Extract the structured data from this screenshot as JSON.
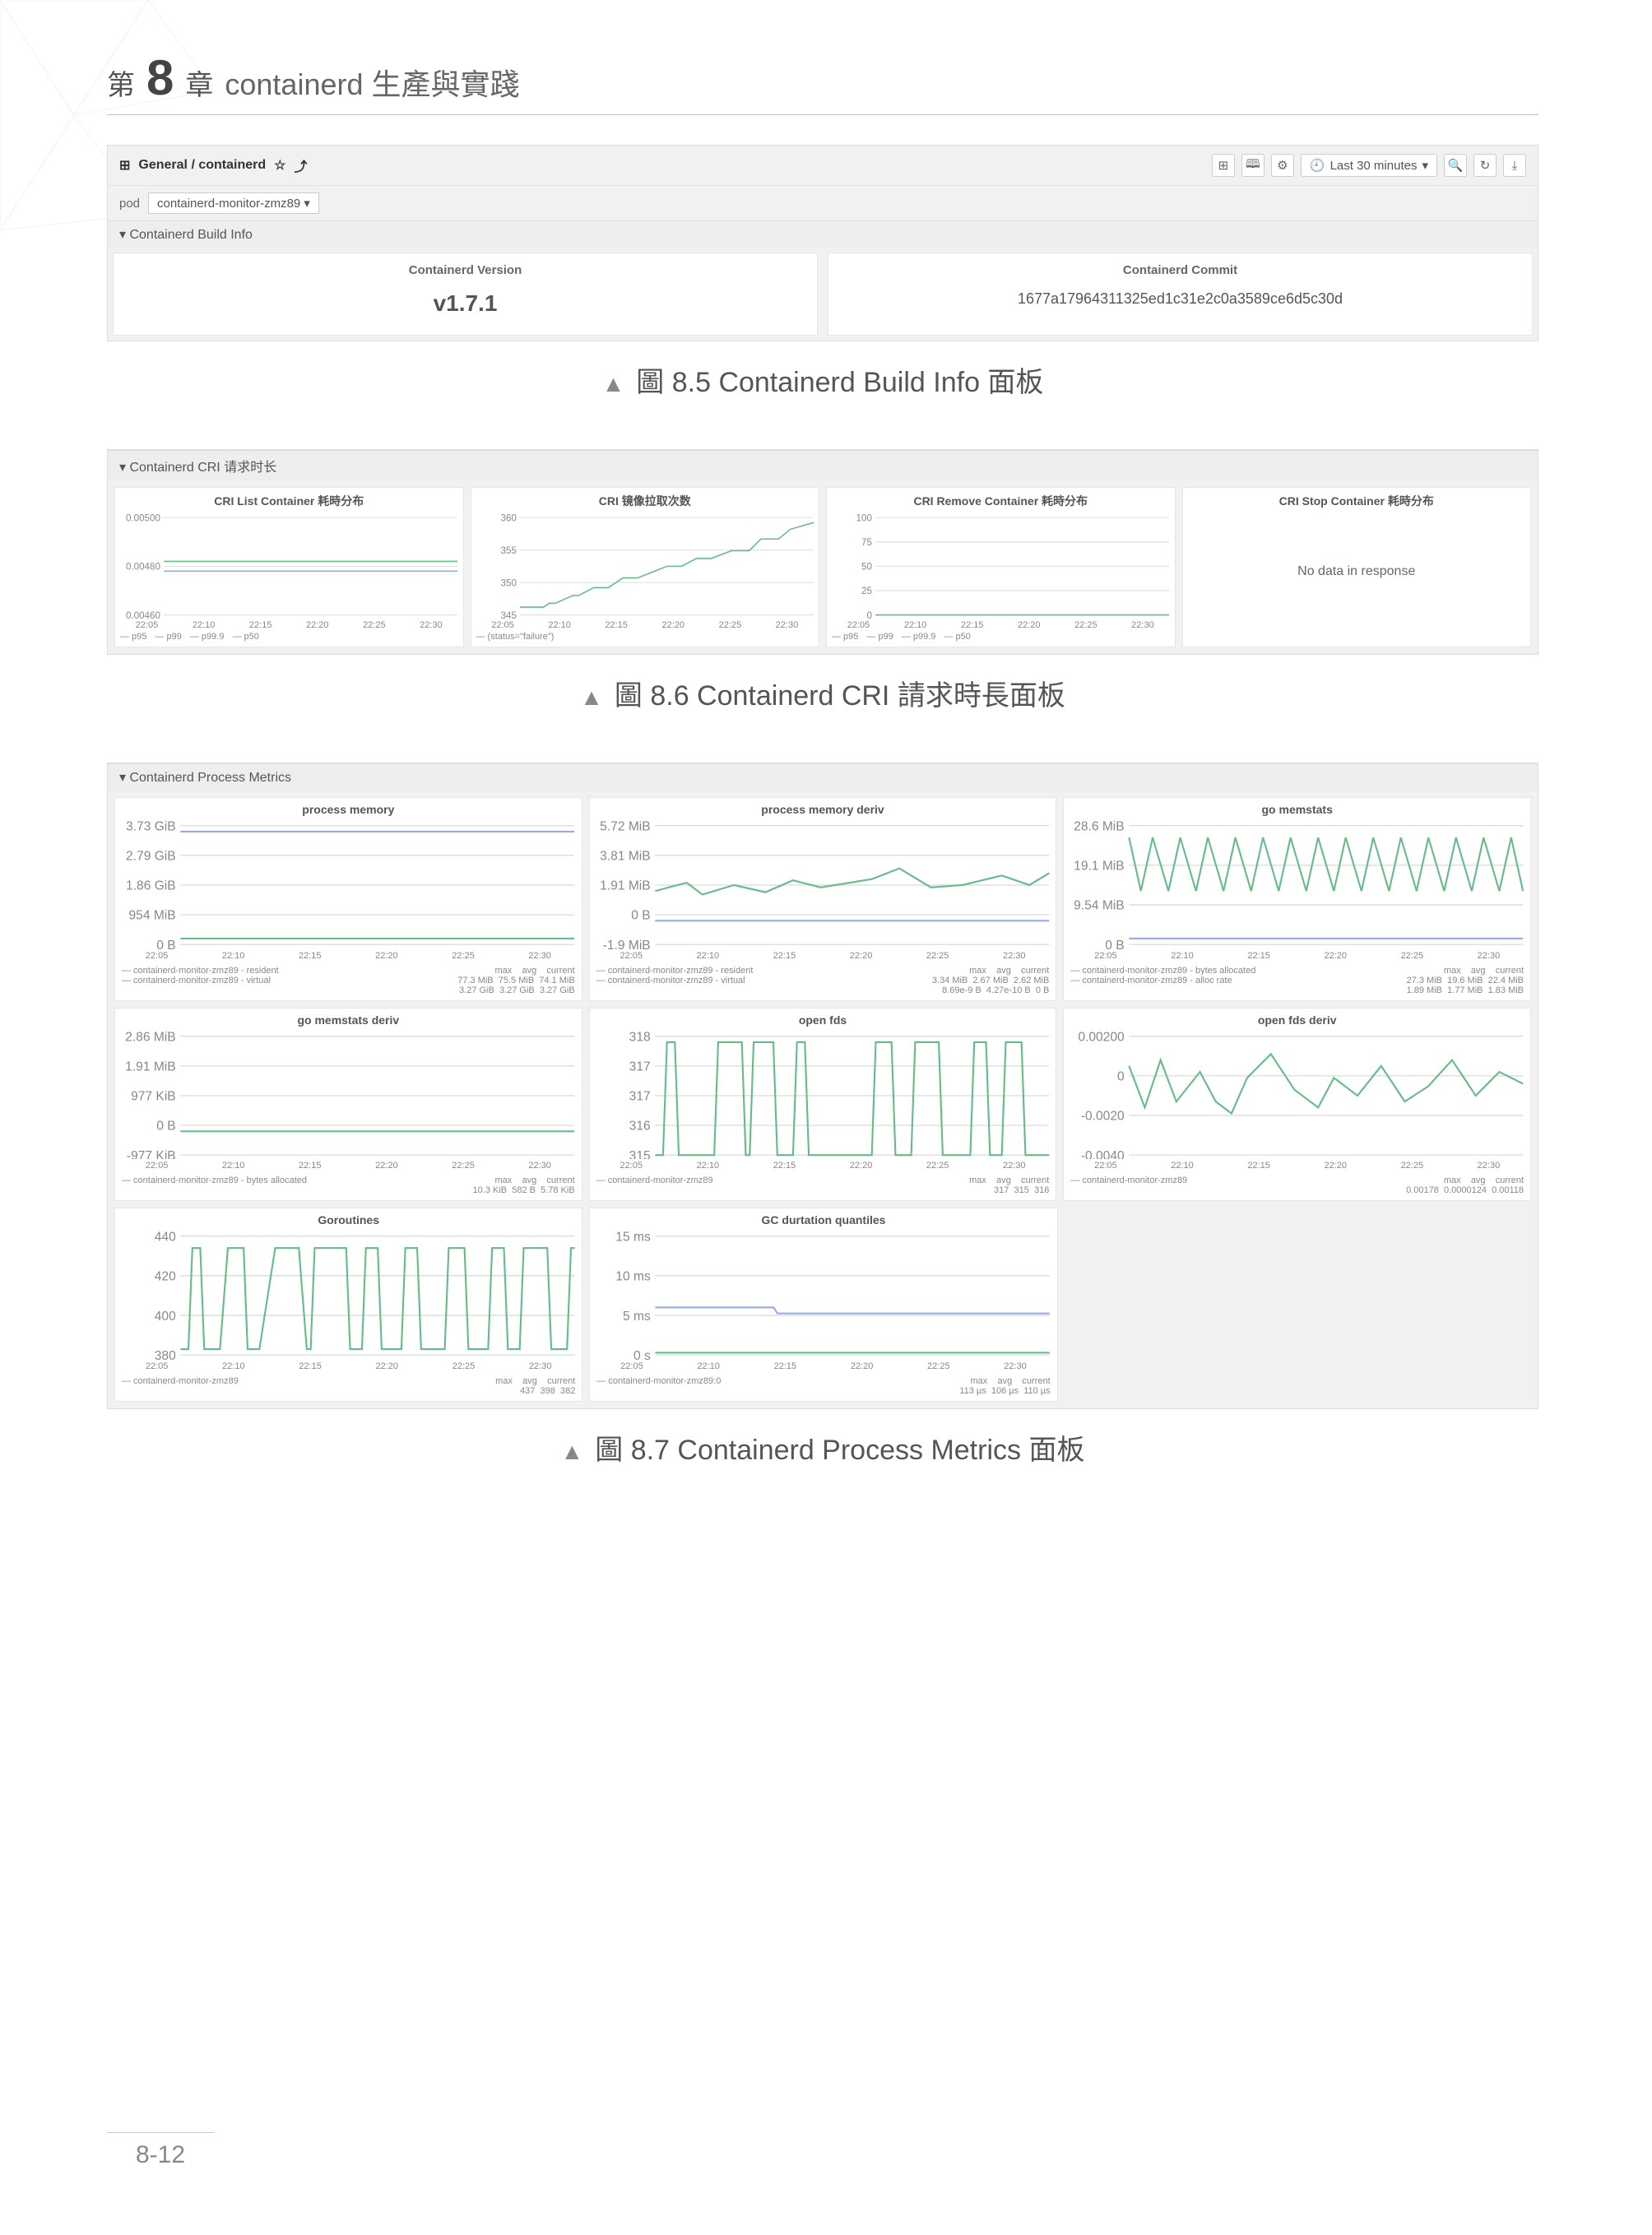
{
  "chapter": {
    "prefix": "第",
    "num": "8",
    "suffix": "章",
    "title": "containerd 生產與實踐"
  },
  "footer_page": "8-12",
  "fig85": {
    "breadcrumb_icon": "⊞",
    "breadcrumb": "General / containerd",
    "star": "☆",
    "share": "⤴",
    "toolbar_icons": [
      "⊞",
      "🕮",
      "⚙"
    ],
    "time_range": "Last 30 minutes",
    "tr_icons": [
      "🔍",
      "↻",
      "⤓"
    ],
    "pod_label": "pod",
    "pod_value": "containerd-monitor-zmz89 ▾",
    "row_title": "▾ Containerd Build Info",
    "panels": [
      {
        "title": "Containerd Version",
        "value": "v1.7.1",
        "small": false
      },
      {
        "title": "Containerd Commit",
        "value": "1677a17964311325ed1c31e2c0a3589ce6d5c30d",
        "small": true
      }
    ],
    "caption": "圖 8.5  Containerd Build Info 面板"
  },
  "fig86": {
    "row_title": "▾ Containerd CRI 请求时长",
    "xticks": [
      "22:05",
      "22:10",
      "22:15",
      "22:20",
      "22:25",
      "22:30"
    ],
    "charts": [
      {
        "title": "CRI List Container 耗時分布",
        "yticks": [
          "0.00500",
          "0.00480",
          "0.00460"
        ],
        "legend": [
          "— p95",
          "— p99",
          "— p99.9",
          "— p50"
        ],
        "series": [
          [
            0,
            0.45
          ],
          [
            1,
            0.45
          ],
          [
            1,
            0.45
          ],
          [
            1,
            0.45
          ],
          [
            1,
            0.45
          ],
          [
            1,
            0.45
          ]
        ],
        "series2": [
          [
            0,
            0.55
          ],
          [
            1,
            0.55
          ],
          [
            1,
            0.55
          ],
          [
            1,
            0.55
          ],
          [
            1,
            0.55
          ],
          [
            1,
            0.55
          ]
        ],
        "type": "line",
        "line_color": "#6b8",
        "line_color2": "#9ad"
      },
      {
        "title": "CRI 镜像拉取次数",
        "yticks": [
          "360",
          "355",
          "350",
          "345"
        ],
        "legend": [
          "— (status=\"failure\")"
        ],
        "series": [
          [
            0,
            0.92
          ],
          [
            0.08,
            0.92
          ],
          [
            0.1,
            0.88
          ],
          [
            0.12,
            0.88
          ],
          [
            0.18,
            0.8
          ],
          [
            0.2,
            0.8
          ],
          [
            0.25,
            0.72
          ],
          [
            0.3,
            0.72
          ],
          [
            0.35,
            0.62
          ],
          [
            0.4,
            0.62
          ],
          [
            0.5,
            0.5
          ],
          [
            0.55,
            0.5
          ],
          [
            0.6,
            0.42
          ],
          [
            0.65,
            0.42
          ],
          [
            0.72,
            0.34
          ],
          [
            0.78,
            0.34
          ],
          [
            0.82,
            0.22
          ],
          [
            0.88,
            0.22
          ],
          [
            0.92,
            0.12
          ],
          [
            1,
            0.05
          ]
        ],
        "type": "step",
        "line_color": "#6b8"
      },
      {
        "title": "CRI Remove Container 耗時分布",
        "yticks": [
          "100",
          "75",
          "50",
          "25",
          "0"
        ],
        "legend": [
          "— p95",
          "— p99",
          "— p99.9",
          "— p50"
        ],
        "series": [
          [
            0,
            1
          ],
          [
            1,
            1
          ]
        ],
        "type": "line",
        "line_color": "#6b8"
      },
      {
        "title": "CRI Stop Container 耗時分布",
        "nodata": "No data in response"
      }
    ],
    "caption": "圖 8.6  Containerd CRI 請求時長面板"
  },
  "fig87": {
    "row_title": "▾ Containerd Process Metrics",
    "xticks": [
      "22:05",
      "22:10",
      "22:15",
      "22:20",
      "22:25",
      "22:30"
    ],
    "legend_header": "max    avg    current",
    "rows": [
      [
        {
          "title": "process memory",
          "yticks": [
            "3.73 GiB",
            "2.79 GiB",
            "1.86 GiB",
            "954 MiB",
            "0 B"
          ],
          "legend_left": [
            "— containerd-monitor-zmz89 - resident",
            "— containerd-monitor-zmz89 - virtual"
          ],
          "legend_right": [
            "77.3 MiB  75.5 MiB  74.1 MiB",
            "3.27 GiB  3.27 GiB  3.27 GiB"
          ],
          "series": [
            [
              0,
              0.95
            ],
            [
              1,
              0.95
            ]
          ],
          "series2": [
            [
              0,
              0.05
            ],
            [
              1,
              0.05
            ]
          ]
        },
        {
          "title": "process memory deriv",
          "yticks": [
            "5.72 MiB",
            "3.81 MiB",
            "1.91 MiB",
            "0 B",
            "-1.9 MiB"
          ],
          "legend_left": [
            "— containerd-monitor-zmz89 - resident",
            "— containerd-monitor-zmz89 - virtual"
          ],
          "legend_right": [
            "3.34 MiB  2.67 MiB  2.62 MiB",
            "8.69e-9 B  4.27e-10 B  0 B"
          ],
          "series": [
            [
              0,
              0.55
            ],
            [
              0.08,
              0.48
            ],
            [
              0.12,
              0.58
            ],
            [
              0.2,
              0.5
            ],
            [
              0.28,
              0.56
            ],
            [
              0.35,
              0.46
            ],
            [
              0.42,
              0.52
            ],
            [
              0.55,
              0.45
            ],
            [
              0.62,
              0.36
            ],
            [
              0.7,
              0.52
            ],
            [
              0.78,
              0.5
            ],
            [
              0.88,
              0.42
            ],
            [
              0.95,
              0.5
            ],
            [
              1,
              0.4
            ]
          ],
          "series2": [
            [
              0,
              0.8
            ],
            [
              1,
              0.8
            ]
          ]
        },
        {
          "title": "go memstats",
          "yticks": [
            "28.6 MiB",
            "19.1 MiB",
            "9.54 MiB",
            "0 B"
          ],
          "legend_left": [
            "— containerd-monitor-zmz89 - bytes allocated",
            "— containerd-monitor-zmz89 - alloc rate"
          ],
          "legend_right": [
            "27.3 MiB  19.6 MiB  22.4 MiB",
            "1.89 MiB  1.77 MiB  1.83 MiB"
          ],
          "series": [
            [
              0,
              0.1
            ],
            [
              0.03,
              0.55
            ],
            [
              0.06,
              0.1
            ],
            [
              0.1,
              0.55
            ],
            [
              0.13,
              0.1
            ],
            [
              0.17,
              0.55
            ],
            [
              0.2,
              0.1
            ],
            [
              0.24,
              0.55
            ],
            [
              0.27,
              0.1
            ],
            [
              0.31,
              0.55
            ],
            [
              0.34,
              0.1
            ],
            [
              0.38,
              0.55
            ],
            [
              0.41,
              0.1
            ],
            [
              0.45,
              0.55
            ],
            [
              0.48,
              0.1
            ],
            [
              0.52,
              0.55
            ],
            [
              0.55,
              0.1
            ],
            [
              0.59,
              0.55
            ],
            [
              0.62,
              0.1
            ],
            [
              0.66,
              0.55
            ],
            [
              0.69,
              0.1
            ],
            [
              0.73,
              0.55
            ],
            [
              0.76,
              0.1
            ],
            [
              0.8,
              0.55
            ],
            [
              0.83,
              0.1
            ],
            [
              0.87,
              0.55
            ],
            [
              0.9,
              0.1
            ],
            [
              0.94,
              0.55
            ],
            [
              0.97,
              0.1
            ],
            [
              1,
              0.55
            ]
          ],
          "series2": [
            [
              0,
              0.95
            ],
            [
              1,
              0.95
            ]
          ]
        }
      ],
      [
        {
          "title": "go memstats deriv",
          "yticks": [
            "2.86 MiB",
            "1.91 MiB",
            "977 KiB",
            "0 B",
            "-977 KiB"
          ],
          "legend_left": [
            "— containerd-monitor-zmz89 - bytes allocated"
          ],
          "legend_right": [
            "10.3 KiB  582 B  5.78 KiB"
          ],
          "series": [
            [
              0,
              0.8
            ],
            [
              1,
              0.8
            ]
          ]
        },
        {
          "title": "open fds",
          "yticks": [
            "318",
            "317",
            "317",
            "316",
            "315"
          ],
          "legend_left": [
            "— containerd-monitor-zmz89"
          ],
          "legend_right": [
            "317  315  316"
          ],
          "series": [
            [
              0,
              1
            ],
            [
              0.02,
              1
            ],
            [
              0.03,
              0.05
            ],
            [
              0.05,
              0.05
            ],
            [
              0.06,
              1
            ],
            [
              0.08,
              1
            ],
            [
              0.15,
              1
            ],
            [
              0.16,
              0.05
            ],
            [
              0.22,
              0.05
            ],
            [
              0.23,
              1
            ],
            [
              0.24,
              1
            ],
            [
              0.25,
              0.05
            ],
            [
              0.3,
              0.05
            ],
            [
              0.31,
              1
            ],
            [
              0.35,
              1
            ],
            [
              0.36,
              0.05
            ],
            [
              0.38,
              0.05
            ],
            [
              0.39,
              1
            ],
            [
              0.55,
              1
            ],
            [
              0.56,
              0.05
            ],
            [
              0.6,
              0.05
            ],
            [
              0.61,
              1
            ],
            [
              0.65,
              1
            ],
            [
              0.66,
              0.05
            ],
            [
              0.72,
              0.05
            ],
            [
              0.73,
              1
            ],
            [
              0.8,
              1
            ],
            [
              0.81,
              0.05
            ],
            [
              0.84,
              0.05
            ],
            [
              0.85,
              1
            ],
            [
              0.88,
              1
            ],
            [
              0.89,
              0.05
            ],
            [
              0.93,
              0.05
            ],
            [
              0.94,
              1
            ],
            [
              1,
              1
            ]
          ]
        },
        {
          "title": "open fds deriv",
          "yticks": [
            "0.00200",
            "0",
            "-0.0020",
            "-0.0040"
          ],
          "legend_left": [
            "— containerd-monitor-zmz89"
          ],
          "legend_right": [
            "0.00178  0.0000124  0.00118"
          ],
          "series": [
            [
              0,
              0.25
            ],
            [
              0.04,
              0.6
            ],
            [
              0.08,
              0.2
            ],
            [
              0.12,
              0.55
            ],
            [
              0.18,
              0.3
            ],
            [
              0.22,
              0.55
            ],
            [
              0.26,
              0.65
            ],
            [
              0.3,
              0.35
            ],
            [
              0.36,
              0.15
            ],
            [
              0.42,
              0.45
            ],
            [
              0.48,
              0.6
            ],
            [
              0.52,
              0.35
            ],
            [
              0.58,
              0.5
            ],
            [
              0.64,
              0.25
            ],
            [
              0.7,
              0.55
            ],
            [
              0.76,
              0.42
            ],
            [
              0.82,
              0.2
            ],
            [
              0.88,
              0.5
            ],
            [
              0.94,
              0.3
            ],
            [
              1,
              0.4
            ]
          ]
        }
      ],
      [
        {
          "title": "Goroutines",
          "yticks": [
            "440",
            "420",
            "400",
            "380"
          ],
          "legend_left": [
            "— containerd-monitor-zmz89"
          ],
          "legend_right": [
            "437  398  382"
          ],
          "series": [
            [
              0,
              0.95
            ],
            [
              0.02,
              0.95
            ],
            [
              0.03,
              0.1
            ],
            [
              0.05,
              0.1
            ],
            [
              0.06,
              0.95
            ],
            [
              0.1,
              0.95
            ],
            [
              0.12,
              0.1
            ],
            [
              0.16,
              0.1
            ],
            [
              0.17,
              0.95
            ],
            [
              0.2,
              0.95
            ],
            [
              0.24,
              0.1
            ],
            [
              0.3,
              0.1
            ],
            [
              0.32,
              0.95
            ],
            [
              0.33,
              0.95
            ],
            [
              0.34,
              0.1
            ],
            [
              0.42,
              0.1
            ],
            [
              0.43,
              0.95
            ],
            [
              0.46,
              0.95
            ],
            [
              0.47,
              0.1
            ],
            [
              0.5,
              0.1
            ],
            [
              0.51,
              0.95
            ],
            [
              0.56,
              0.95
            ],
            [
              0.57,
              0.1
            ],
            [
              0.6,
              0.1
            ],
            [
              0.61,
              0.95
            ],
            [
              0.67,
              0.95
            ],
            [
              0.68,
              0.1
            ],
            [
              0.72,
              0.1
            ],
            [
              0.73,
              0.95
            ],
            [
              0.78,
              0.95
            ],
            [
              0.79,
              0.1
            ],
            [
              0.82,
              0.1
            ],
            [
              0.83,
              0.95
            ],
            [
              0.86,
              0.95
            ],
            [
              0.87,
              0.1
            ],
            [
              0.93,
              0.1
            ],
            [
              0.94,
              0.95
            ],
            [
              0.98,
              0.95
            ],
            [
              0.99,
              0.1
            ],
            [
              1,
              0.1
            ]
          ]
        },
        {
          "title": "GC durtation quantiles",
          "yticks": [
            "15 ms",
            "10 ms",
            "5 ms",
            "0 s"
          ],
          "legend_left": [
            "— containerd-monitor-zmz89:0"
          ],
          "legend_right": [
            "113 µs  106 µs  110 µs"
          ],
          "series": [
            [
              0,
              0.98
            ],
            [
              1,
              0.98
            ]
          ],
          "series2": [
            [
              0,
              0.6
            ],
            [
              0.3,
              0.6
            ],
            [
              0.31,
              0.65
            ],
            [
              1,
              0.65
            ]
          ]
        },
        null
      ]
    ],
    "caption": "圖 8.7  Containerd Process Metrics 面板"
  }
}
